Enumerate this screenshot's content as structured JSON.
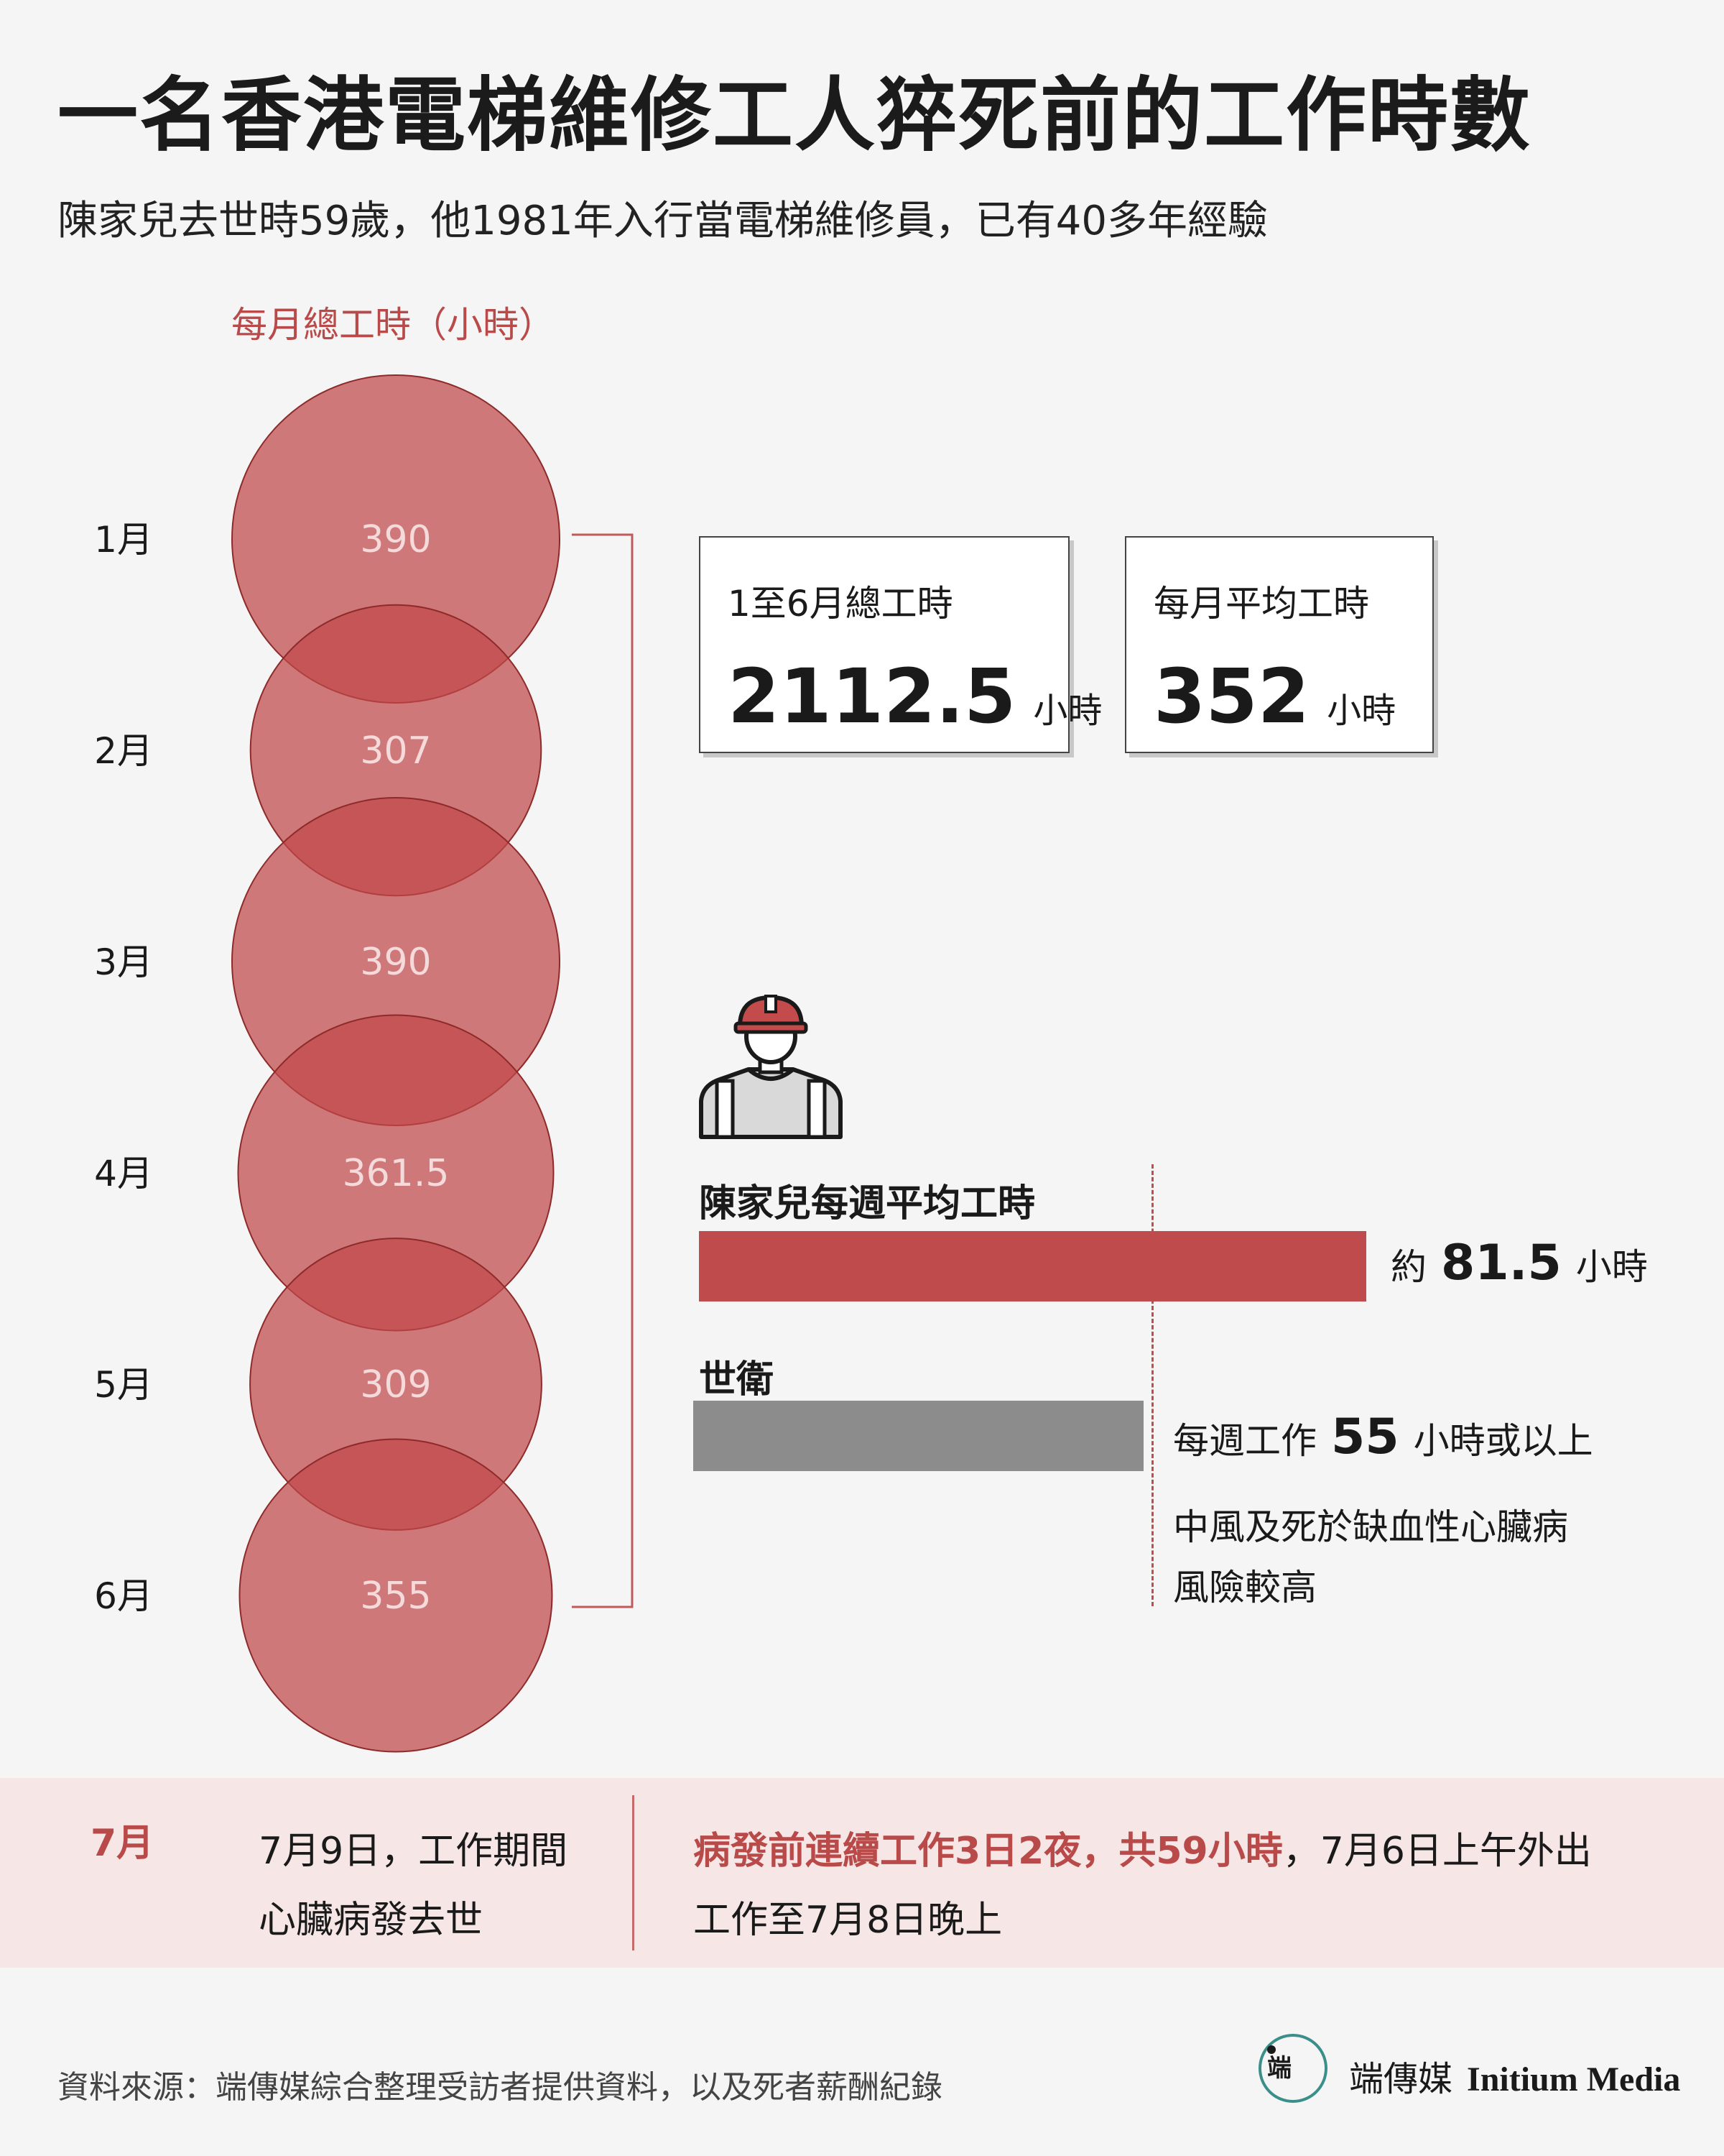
{
  "title": "一名香港電梯維修工人猝死前的工作時數",
  "subtitle": "陳家兒去世時59歲，他1981年入行當電梯維修員，已有40多年經驗",
  "chart_data": [
    {
      "type": "bubble",
      "title": "每月總工時（小時）",
      "categories": [
        "1月",
        "2月",
        "3月",
        "4月",
        "5月",
        "6月"
      ],
      "values": [
        390,
        307,
        390,
        361.5,
        309,
        355
      ],
      "value_labels": [
        "390",
        "307",
        "390",
        "361.5",
        "309",
        "355"
      ],
      "color": "#c0484a"
    },
    {
      "type": "bar",
      "orientation": "horizontal",
      "categories": [
        "陳家兒每週平均工時",
        "世衛"
      ],
      "values": [
        81.5,
        55
      ],
      "colors": [
        "#bf4b4c",
        "#8c8c8c"
      ]
    }
  ],
  "stats": [
    {
      "label": "1至6月總工時",
      "value": "2112.5",
      "unit": "小時"
    },
    {
      "label": "每月平均工時",
      "value": "352",
      "unit": "小時"
    }
  ],
  "comparison": {
    "worker_label": "陳家兒每週平均工時",
    "worker_prefix": "約",
    "worker_value": "81.5",
    "worker_unit": "小時",
    "who_label": "世衛",
    "who_prefix": "每週工作",
    "who_value": "55",
    "who_suffix": "小時或以上",
    "who_note_line1": "中風及死於缺血性心臟病",
    "who_note_line2": "風險較高"
  },
  "july": {
    "month": "7月",
    "event_line1": "7月9日，工作期間",
    "event_line2": "心臟病發去世",
    "detail_highlight": "病發前連續工作3日2夜，共59小時",
    "detail_rest": "，7月6日上午外出",
    "detail_line2": "工作至7月8日晚上"
  },
  "source": "資料來源：端傳媒綜合整理受訪者提供資料，以及死者薪酬紀錄",
  "logo": {
    "mark": "端",
    "name_zh": "端傳媒",
    "name_en": "Initium Media"
  },
  "colors": {
    "accent": "#b94a4a",
    "bubble": "#c0484a",
    "who_bar": "#8c8c8c",
    "band": "#f6e6e6"
  },
  "icons": {
    "worker": "construction-worker-icon"
  }
}
